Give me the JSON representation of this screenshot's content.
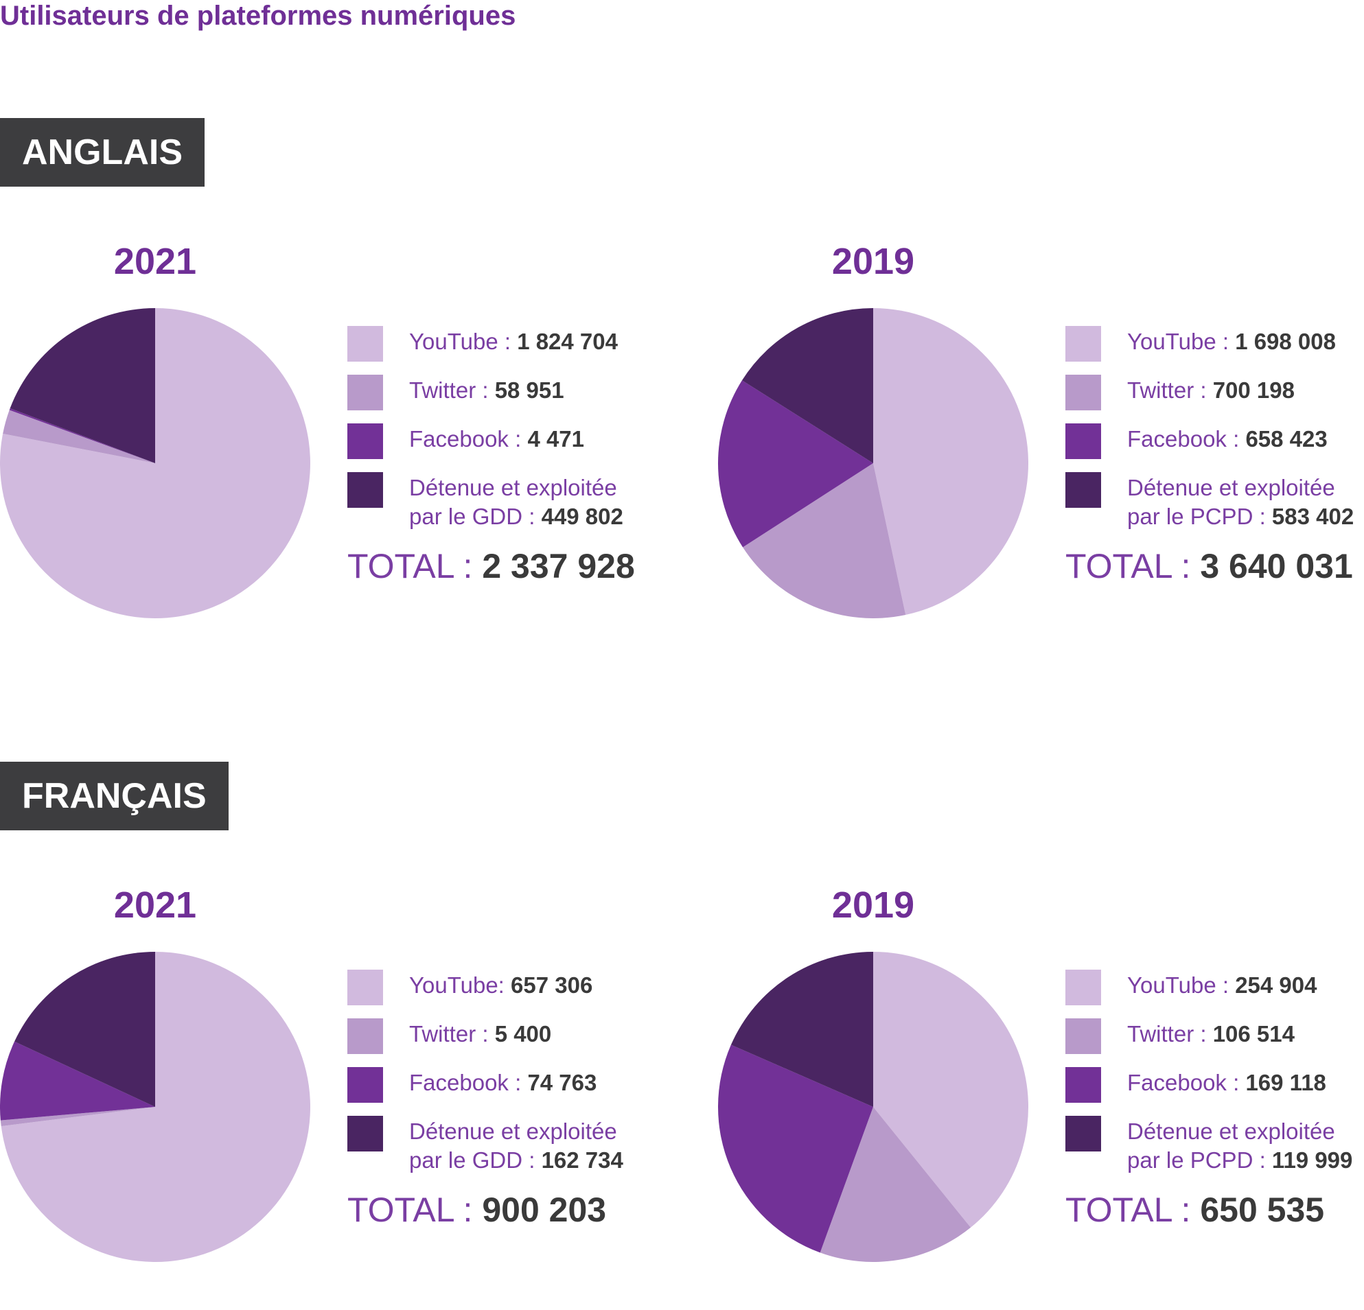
{
  "title": "Utilisateurs de plateformes numériques",
  "colors": {
    "youtube": "#d1bade",
    "twitter": "#b89aca",
    "facebook": "#723197",
    "owned": "#4a2562"
  },
  "sections": [
    {
      "label": "ANGLAIS",
      "charts": [
        {
          "year": "2021",
          "legend": [
            {
              "label": "YouTube : ",
              "value": "1 824 704"
            },
            {
              "label": "Twitter : ",
              "value": "58 951"
            },
            {
              "label": "Facebook : ",
              "value": "4 471"
            },
            {
              "label_line1": "Détenue et exploitée",
              "label_line2": "par le GDD : ",
              "value": "449 802"
            }
          ],
          "total_label": "TOTAL : ",
          "total_value": "2 337 928"
        },
        {
          "year": "2019",
          "legend": [
            {
              "label": "YouTube : ",
              "value": "1 698 008"
            },
            {
              "label": "Twitter : ",
              "value": "700 198"
            },
            {
              "label": "Facebook : ",
              "value": "658 423"
            },
            {
              "label_line1": "Détenue et exploitée",
              "label_line2": "par le PCPD : ",
              "value": "583 402"
            }
          ],
          "total_label": "TOTAL : ",
          "total_value": "3 640 031"
        }
      ]
    },
    {
      "label": "FRANÇAIS",
      "charts": [
        {
          "year": "2021",
          "legend": [
            {
              "label": "YouTube: ",
              "value": "657 306"
            },
            {
              "label": "Twitter : ",
              "value": "5 400"
            },
            {
              "label": "Facebook : ",
              "value": "74 763"
            },
            {
              "label_line1": "Détenue et exploitée",
              "label_line2": "par le GDD : ",
              "value": "162 734"
            }
          ],
          "total_label": "TOTAL : ",
          "total_value": "900 203"
        },
        {
          "year": "2019",
          "legend": [
            {
              "label": "YouTube : ",
              "value": "254 904"
            },
            {
              "label": "Twitter : ",
              "value": "106 514"
            },
            {
              "label": "Facebook : ",
              "value": "169 118"
            },
            {
              "label_line1": "Détenue et exploitée",
              "label_line2": "par le PCPD : ",
              "value": "119 999"
            }
          ],
          "total_label": "TOTAL : ",
          "total_value": "650 535"
        }
      ]
    }
  ],
  "chart_data": [
    {
      "type": "pie",
      "title": "2021",
      "categories": [
        "YouTube",
        "Twitter",
        "Facebook",
        "Détenue et exploitée par le GDD"
      ],
      "values": [
        1824704,
        58951,
        4471,
        449802
      ]
    },
    {
      "type": "pie",
      "title": "2019",
      "categories": [
        "YouTube",
        "Twitter",
        "Facebook",
        "Détenue et exploitée par le PCPD"
      ],
      "values": [
        1698008,
        700198,
        658423,
        583402
      ]
    },
    {
      "type": "pie",
      "title": "2021",
      "categories": [
        "YouTube",
        "Twitter",
        "Facebook",
        "Détenue et exploitée par le GDD"
      ],
      "values": [
        657306,
        5400,
        74763,
        162734
      ]
    },
    {
      "type": "pie",
      "title": "2019",
      "categories": [
        "YouTube",
        "Twitter",
        "Facebook",
        "Détenue et exploitée par le PCPD"
      ],
      "values": [
        254904,
        106514,
        169118,
        119999
      ]
    }
  ]
}
